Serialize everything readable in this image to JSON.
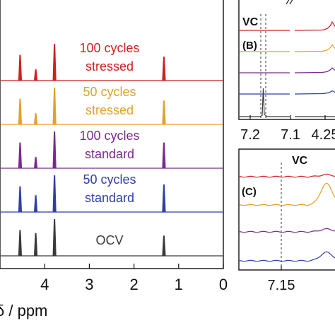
{
  "chart_data": [
    {
      "panel": "A",
      "type": "line",
      "xlabel": "δ / ppm",
      "xlim": [
        5,
        0
      ],
      "x_ticks": [
        "4",
        "3",
        "2",
        "1",
        "0"
      ],
      "series": [
        {
          "name": "OCV",
          "label_lines": [
            "OCV"
          ],
          "color": "#3a3a3a",
          "peaks": [
            {
              "ppm": 4.2,
              "height": 0.62
            },
            {
              "ppm": 3.78,
              "height": 1.0
            },
            {
              "ppm": 1.33,
              "height": 0.55
            },
            {
              "ppm": 4.55,
              "height": 0.7
            }
          ]
        },
        {
          "name": "50 cycles standard",
          "label_lines": [
            "50 cycles",
            "standard"
          ],
          "color": "#2f3fa8",
          "peaks": [
            {
              "ppm": 4.2,
              "height": 0.45
            },
            {
              "ppm": 3.78,
              "height": 1.0
            },
            {
              "ppm": 1.33,
              "height": 0.75
            },
            {
              "ppm": 4.55,
              "height": 0.7
            }
          ]
        },
        {
          "name": "100 cycles standard",
          "label_lines": [
            "100 cycles",
            "standard"
          ],
          "color": "#7a2a8c",
          "peaks": [
            {
              "ppm": 4.2,
              "height": 0.3
            },
            {
              "ppm": 3.78,
              "height": 1.0
            },
            {
              "ppm": 1.33,
              "height": 0.7
            },
            {
              "ppm": 4.55,
              "height": 0.7
            }
          ]
        },
        {
          "name": "50 cycles stressed",
          "label_lines": [
            "50 cycles",
            "stressed"
          ],
          "color": "#e0a22a",
          "peaks": [
            {
              "ppm": 4.2,
              "height": 0.3
            },
            {
              "ppm": 3.78,
              "height": 1.0
            },
            {
              "ppm": 1.33,
              "height": 0.65
            },
            {
              "ppm": 4.55,
              "height": 0.7
            }
          ]
        },
        {
          "name": "100 cycles stressed",
          "label_lines": [
            "100 cycles",
            "stressed"
          ],
          "color": "#cf2020",
          "peaks": [
            {
              "ppm": 4.2,
              "height": 0.3
            },
            {
              "ppm": 3.78,
              "height": 1.0
            },
            {
              "ppm": 1.33,
              "height": 0.65
            },
            {
              "ppm": 4.55,
              "height": 0.7
            }
          ]
        }
      ]
    },
    {
      "panel": "B",
      "panel_label": "(B)",
      "type": "line",
      "annotation": "VC",
      "xlim": [
        7.2,
        4.2
      ],
      "x_ticks": [
        "7.2",
        "7.1",
        "4.25"
      ],
      "series_colors": [
        "#3a3a3a",
        "#2f3fa8",
        "#7a2a8c",
        "#e0a22a",
        "#cf2020"
      ]
    },
    {
      "panel": "C",
      "panel_label": "(C)",
      "type": "line",
      "annotation": "VC",
      "x_ticks": [
        "7.15"
      ],
      "series_colors": [
        "#2f3fa8",
        "#7a2a8c",
        "#e0a22a",
        "#cf2020"
      ]
    }
  ]
}
